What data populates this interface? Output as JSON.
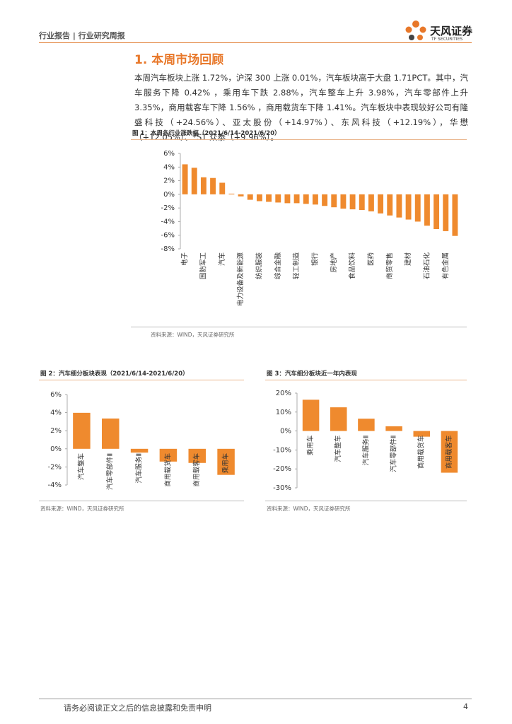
{
  "header": {
    "left": "行业报告",
    "separator": "|",
    "right": "行业研究周报",
    "logo": "天风证券",
    "logo_en": "TF SECURITIES"
  },
  "section_title": "1. 本周市场回顾",
  "paragraph": "本周汽车板块上涨 1.72%，沪深 300 上涨 0.01%，汽车板块高于大盘 1.71PCT。其中，汽车服务下降 0.42% ，乘用车下跌 2.88%，汽车整车上升 3.98%，汽车零部件上升 3.35%，商用载客车下降 1.56% ，商用载货车下降 1.41%。汽车板块中表现较好公司有隆盛科技（+24.56%）、亚太股份（+14.97%）、东风科技（+12.19%），华懋（+12.05%）、*ST 众泰（+9.96%）。",
  "chart_data": [
    {
      "type": "bar",
      "title": "图 1：本周各行业涨跌幅（2021/6/14-2021/6/20）",
      "source": "资料来源：WIND，天风证券研究所",
      "color": "#ef8a2e",
      "categories": [
        "电子",
        null,
        "国防军工",
        null,
        "汽车",
        null,
        "电力设备及新能源",
        null,
        "纺织服装",
        null,
        "综合金融",
        null,
        "轻工制造",
        null,
        "银行",
        null,
        "房地产",
        null,
        "食品饮料",
        null,
        "医药",
        null,
        "商贸零售",
        null,
        "建材",
        null,
        "石油石化",
        null,
        "有色金属",
        null
      ],
      "values": [
        4.4,
        3.9,
        2.5,
        2.4,
        1.7,
        0.1,
        -0.3,
        -0.8,
        -1.0,
        -1.1,
        -1.2,
        -1.3,
        -1.3,
        -1.4,
        -1.5,
        -1.7,
        -1.9,
        -2.1,
        -2.2,
        -2.3,
        -2.5,
        -2.8,
        -3.1,
        -3.4,
        -3.7,
        -4.0,
        -4.6,
        -5.1,
        -5.4,
        -6.1
      ],
      "ylim": [
        -8,
        6
      ],
      "yticks": [
        {
          "value": -8,
          "label": "-8%"
        },
        {
          "value": -6,
          "label": "-6%"
        },
        {
          "value": -4,
          "label": "-4%"
        },
        {
          "value": -2,
          "label": "-2%"
        },
        {
          "value": 0,
          "label": "0%"
        },
        {
          "value": 2,
          "label": "2%"
        },
        {
          "value": 4,
          "label": "4%"
        },
        {
          "value": 6,
          "label": "6%"
        }
      ]
    },
    {
      "type": "bar",
      "title": "图 2：汽车细分板块表现（2021/6/14-2021/6/20）",
      "source": "资料来源：WIND，天风证券研究所",
      "color": "#ef8a2e",
      "categories": [
        "汽车整车",
        "汽车零部件Ⅱ",
        "汽车服务Ⅱ",
        "商用载货车",
        "商用载客车",
        "乘用车"
      ],
      "values": [
        3.98,
        3.35,
        -0.42,
        -1.41,
        -1.56,
        -2.88
      ],
      "ylim": [
        -4,
        6
      ],
      "yticks": [
        {
          "value": -4,
          "label": "-4%"
        },
        {
          "value": -2,
          "label": "-2%"
        },
        {
          "value": 0,
          "label": "0%"
        },
        {
          "value": 2,
          "label": "2%"
        },
        {
          "value": 4,
          "label": "4%"
        },
        {
          "value": 6,
          "label": "6%"
        }
      ]
    },
    {
      "type": "bar",
      "title": "图 3：汽车细分板块近一年内表现",
      "source": "资料来源：WIND，天风证券研究所",
      "color": "#ef8a2e",
      "categories": [
        "乘用车",
        "汽车整车",
        "汽车服务Ⅱ",
        "汽车零部件Ⅱ",
        "商用载货车",
        "商用载客车"
      ],
      "values": [
        16.5,
        12.5,
        6.5,
        2.5,
        -3.0,
        -22.0
      ],
      "ylim": [
        -30,
        20
      ],
      "yticks": [
        {
          "value": -30,
          "label": "-30%"
        },
        {
          "value": -20,
          "label": "-20%"
        },
        {
          "value": -10,
          "label": "-10%"
        },
        {
          "value": 0,
          "label": "0%"
        },
        {
          "value": 10,
          "label": "10%"
        },
        {
          "value": 20,
          "label": "20%"
        }
      ]
    }
  ],
  "footer": {
    "disclaimer": "请务必阅读正文之后的信息披露和免责申明",
    "page": "4"
  }
}
